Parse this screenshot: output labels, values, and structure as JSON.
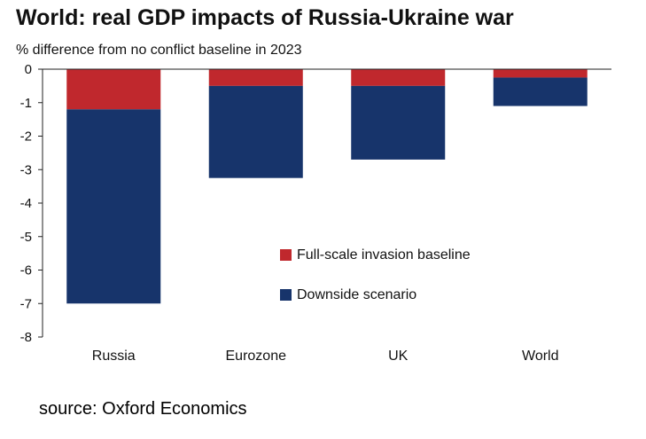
{
  "chart_data": {
    "type": "bar",
    "stacked": true,
    "title": "World: real GDP impacts of Russia-Ukraine war",
    "subtitle": "% difference from no conflict baseline in 2023",
    "categories": [
      "Russia",
      "Eurozone",
      "UK",
      "World"
    ],
    "series": [
      {
        "name": "Full-scale invasion baseline",
        "color": "#c0282d",
        "values": [
          -1.2,
          -0.5,
          -0.5,
          -0.25
        ]
      },
      {
        "name": "Downside scenario",
        "color": "#17346b",
        "values": [
          -5.8,
          -2.75,
          -2.2,
          -0.85
        ]
      }
    ],
    "yticks": [
      "0",
      "-1",
      "-2",
      "-3",
      "-4",
      "-5",
      "-6",
      "-7",
      "-8"
    ],
    "ylim": [
      -8,
      0
    ],
    "grid": false,
    "legend_position": "bottom-right inside plot"
  },
  "source": "source: Oxford Economics"
}
